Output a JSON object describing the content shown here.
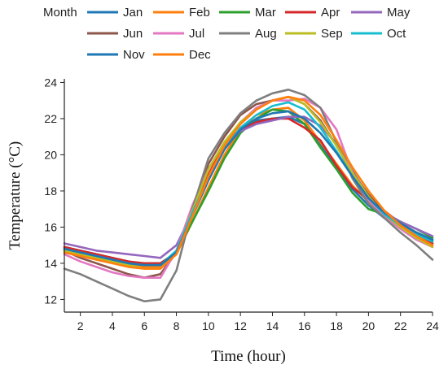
{
  "chart_data": {
    "type": "line",
    "xlabel": "Time (hour)",
    "ylabel": "Temperature (°C)",
    "xlim": [
      1,
      24
    ],
    "ylim": [
      11.3,
      24.2
    ],
    "xticks": [
      2,
      4,
      6,
      8,
      10,
      12,
      14,
      16,
      18,
      20,
      22,
      24
    ],
    "yticks": [
      12,
      14,
      16,
      18,
      20,
      22,
      24
    ],
    "grid": false,
    "legend": {
      "title": "Month",
      "placement": "top"
    },
    "x": [
      1,
      2,
      3,
      4,
      5,
      6,
      7,
      8,
      9,
      10,
      11,
      12,
      13,
      14,
      15,
      16,
      17,
      18,
      19,
      20,
      21,
      22,
      23,
      24
    ],
    "series": [
      {
        "name": "Jan",
        "color": "#1f77b4",
        "values": [
          14.9,
          14.7,
          14.5,
          14.3,
          14.1,
          13.9,
          13.9,
          14.7,
          16.6,
          18.6,
          20.4,
          21.4,
          21.9,
          22.0,
          22.1,
          21.7,
          20.6,
          19.3,
          18.1,
          17.2,
          16.5,
          16.1,
          15.7,
          15.3
        ]
      },
      {
        "name": "Feb",
        "color": "#ff7f0e",
        "values": [
          14.7,
          14.5,
          14.3,
          14.1,
          13.9,
          13.8,
          13.8,
          14.5,
          16.3,
          18.2,
          20.0,
          21.4,
          22.2,
          22.5,
          22.6,
          21.9,
          20.7,
          19.5,
          18.3,
          17.4,
          16.6,
          16.0,
          15.5,
          15.1
        ]
      },
      {
        "name": "Mar",
        "color": "#2ca02c",
        "values": [
          14.8,
          14.6,
          14.4,
          14.2,
          14.0,
          14.0,
          14.0,
          14.6,
          16.3,
          18.0,
          19.8,
          21.2,
          22.0,
          22.5,
          22.4,
          21.7,
          20.4,
          19.2,
          17.9,
          17.0,
          16.7,
          16.3,
          15.9,
          15.4
        ]
      },
      {
        "name": "Apr",
        "color": "#d62728",
        "values": [
          14.9,
          14.7,
          14.5,
          14.3,
          14.1,
          14.0,
          14.0,
          14.6,
          16.7,
          18.9,
          20.6,
          21.4,
          21.8,
          22.0,
          22.0,
          21.5,
          20.8,
          19.4,
          18.2,
          17.5,
          16.9,
          16.2,
          15.7,
          15.1
        ]
      },
      {
        "name": "May",
        "color": "#9467bd",
        "values": [
          15.1,
          14.9,
          14.7,
          14.6,
          14.5,
          14.4,
          14.3,
          15.0,
          16.8,
          18.7,
          20.4,
          21.3,
          21.7,
          21.9,
          22.1,
          22.1,
          21.6,
          20.6,
          19.1,
          17.7,
          16.8,
          16.3,
          15.9,
          15.5
        ]
      },
      {
        "name": "Jun",
        "color": "#8c564b",
        "values": [
          14.7,
          14.3,
          14.0,
          13.7,
          13.4,
          13.2,
          13.4,
          14.6,
          17.0,
          19.5,
          21.0,
          22.2,
          22.8,
          23.0,
          23.2,
          22.8,
          21.9,
          20.5,
          19.0,
          17.8,
          16.8,
          16.2,
          15.6,
          15.2
        ]
      },
      {
        "name": "Jul",
        "color": "#e377c2",
        "values": [
          14.5,
          14.1,
          13.8,
          13.5,
          13.3,
          13.2,
          13.2,
          14.7,
          17.2,
          19.2,
          20.7,
          21.8,
          22.6,
          23.0,
          23.0,
          23.1,
          22.6,
          21.4,
          19.0,
          17.5,
          16.6,
          15.9,
          15.3,
          14.9
        ]
      },
      {
        "name": "Aug",
        "color": "#7f7f7f",
        "values": [
          13.7,
          13.4,
          13.0,
          12.6,
          12.2,
          11.9,
          12.0,
          13.6,
          17.0,
          19.8,
          21.2,
          22.3,
          23.0,
          23.4,
          23.6,
          23.3,
          22.6,
          20.7,
          18.7,
          17.3,
          16.5,
          15.7,
          15.0,
          14.2
        ]
      },
      {
        "name": "Sep",
        "color": "#bcbd22",
        "values": [
          14.7,
          14.5,
          14.3,
          14.1,
          13.9,
          13.7,
          13.7,
          14.6,
          16.9,
          19.2,
          20.7,
          21.8,
          22.5,
          23.0,
          23.2,
          22.8,
          21.8,
          20.5,
          19.0,
          17.7,
          16.7,
          16.0,
          15.4,
          14.9
        ]
      },
      {
        "name": "Oct",
        "color": "#17becf",
        "values": [
          14.8,
          14.6,
          14.4,
          14.2,
          14.0,
          13.9,
          13.9,
          14.7,
          16.8,
          18.7,
          20.3,
          21.5,
          22.2,
          22.7,
          22.9,
          22.5,
          21.5,
          20.2,
          18.8,
          17.6,
          16.7,
          16.1,
          15.6,
          15.2
        ]
      },
      {
        "name": "Nov",
        "color": "#1f77b4",
        "values": [
          14.8,
          14.6,
          14.4,
          14.2,
          14.0,
          13.9,
          13.9,
          14.6,
          16.6,
          18.6,
          20.3,
          21.4,
          22.0,
          22.3,
          22.4,
          22.0,
          21.2,
          20.1,
          18.8,
          17.6,
          16.8,
          16.2,
          15.7,
          15.3
        ]
      },
      {
        "name": "Dec",
        "color": "#ff7f0e",
        "values": [
          14.6,
          14.4,
          14.2,
          14.0,
          13.8,
          13.7,
          13.7,
          14.5,
          16.6,
          18.8,
          20.5,
          21.7,
          22.5,
          23.0,
          23.2,
          23.0,
          22.2,
          20.8,
          19.3,
          18.0,
          16.9,
          16.1,
          15.5,
          15.0
        ]
      }
    ]
  }
}
